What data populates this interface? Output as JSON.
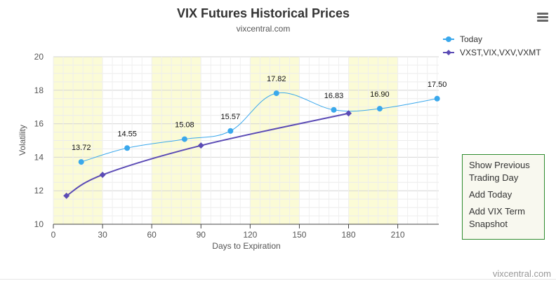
{
  "menu": {
    "items": [
      "Show Previous Trading Day",
      "Add Today",
      "Add VIX Term Snapshot"
    ]
  },
  "chart_data": {
    "type": "line",
    "title": "VIX Futures Historical Prices",
    "subtitle": "vixcentral.com",
    "credits": "vixcentral.com",
    "xlabel": "Days to Expiration",
    "ylabel": "Volatility",
    "xlim": [
      0,
      235
    ],
    "ylim": [
      10,
      20
    ],
    "xticks": [
      0,
      30,
      60,
      90,
      120,
      150,
      180,
      210
    ],
    "yticks": [
      10,
      12,
      14,
      16,
      18,
      20
    ],
    "legend_position": "top-right",
    "bands": [
      [
        0,
        30
      ],
      [
        60,
        90
      ],
      [
        120,
        150
      ],
      [
        180,
        210
      ]
    ],
    "series": [
      {
        "name": "Today",
        "color": "#3aa8ec",
        "marker": "circle",
        "x": [
          17,
          45,
          80,
          108,
          136,
          171,
          199,
          234
        ],
        "y": [
          13.72,
          14.55,
          15.08,
          15.57,
          17.82,
          16.83,
          16.9,
          17.5
        ],
        "labels": [
          "13.72",
          "14.55",
          "15.08",
          "15.57",
          "17.82",
          "16.83",
          "16.90",
          "17.50"
        ]
      },
      {
        "name": "VXST,VIX,VXV,VXMT",
        "color": "#5b4bb5",
        "marker": "diamond",
        "x": [
          8,
          30,
          90,
          180
        ],
        "y": [
          11.7,
          12.95,
          14.7,
          16.62
        ]
      }
    ]
  }
}
